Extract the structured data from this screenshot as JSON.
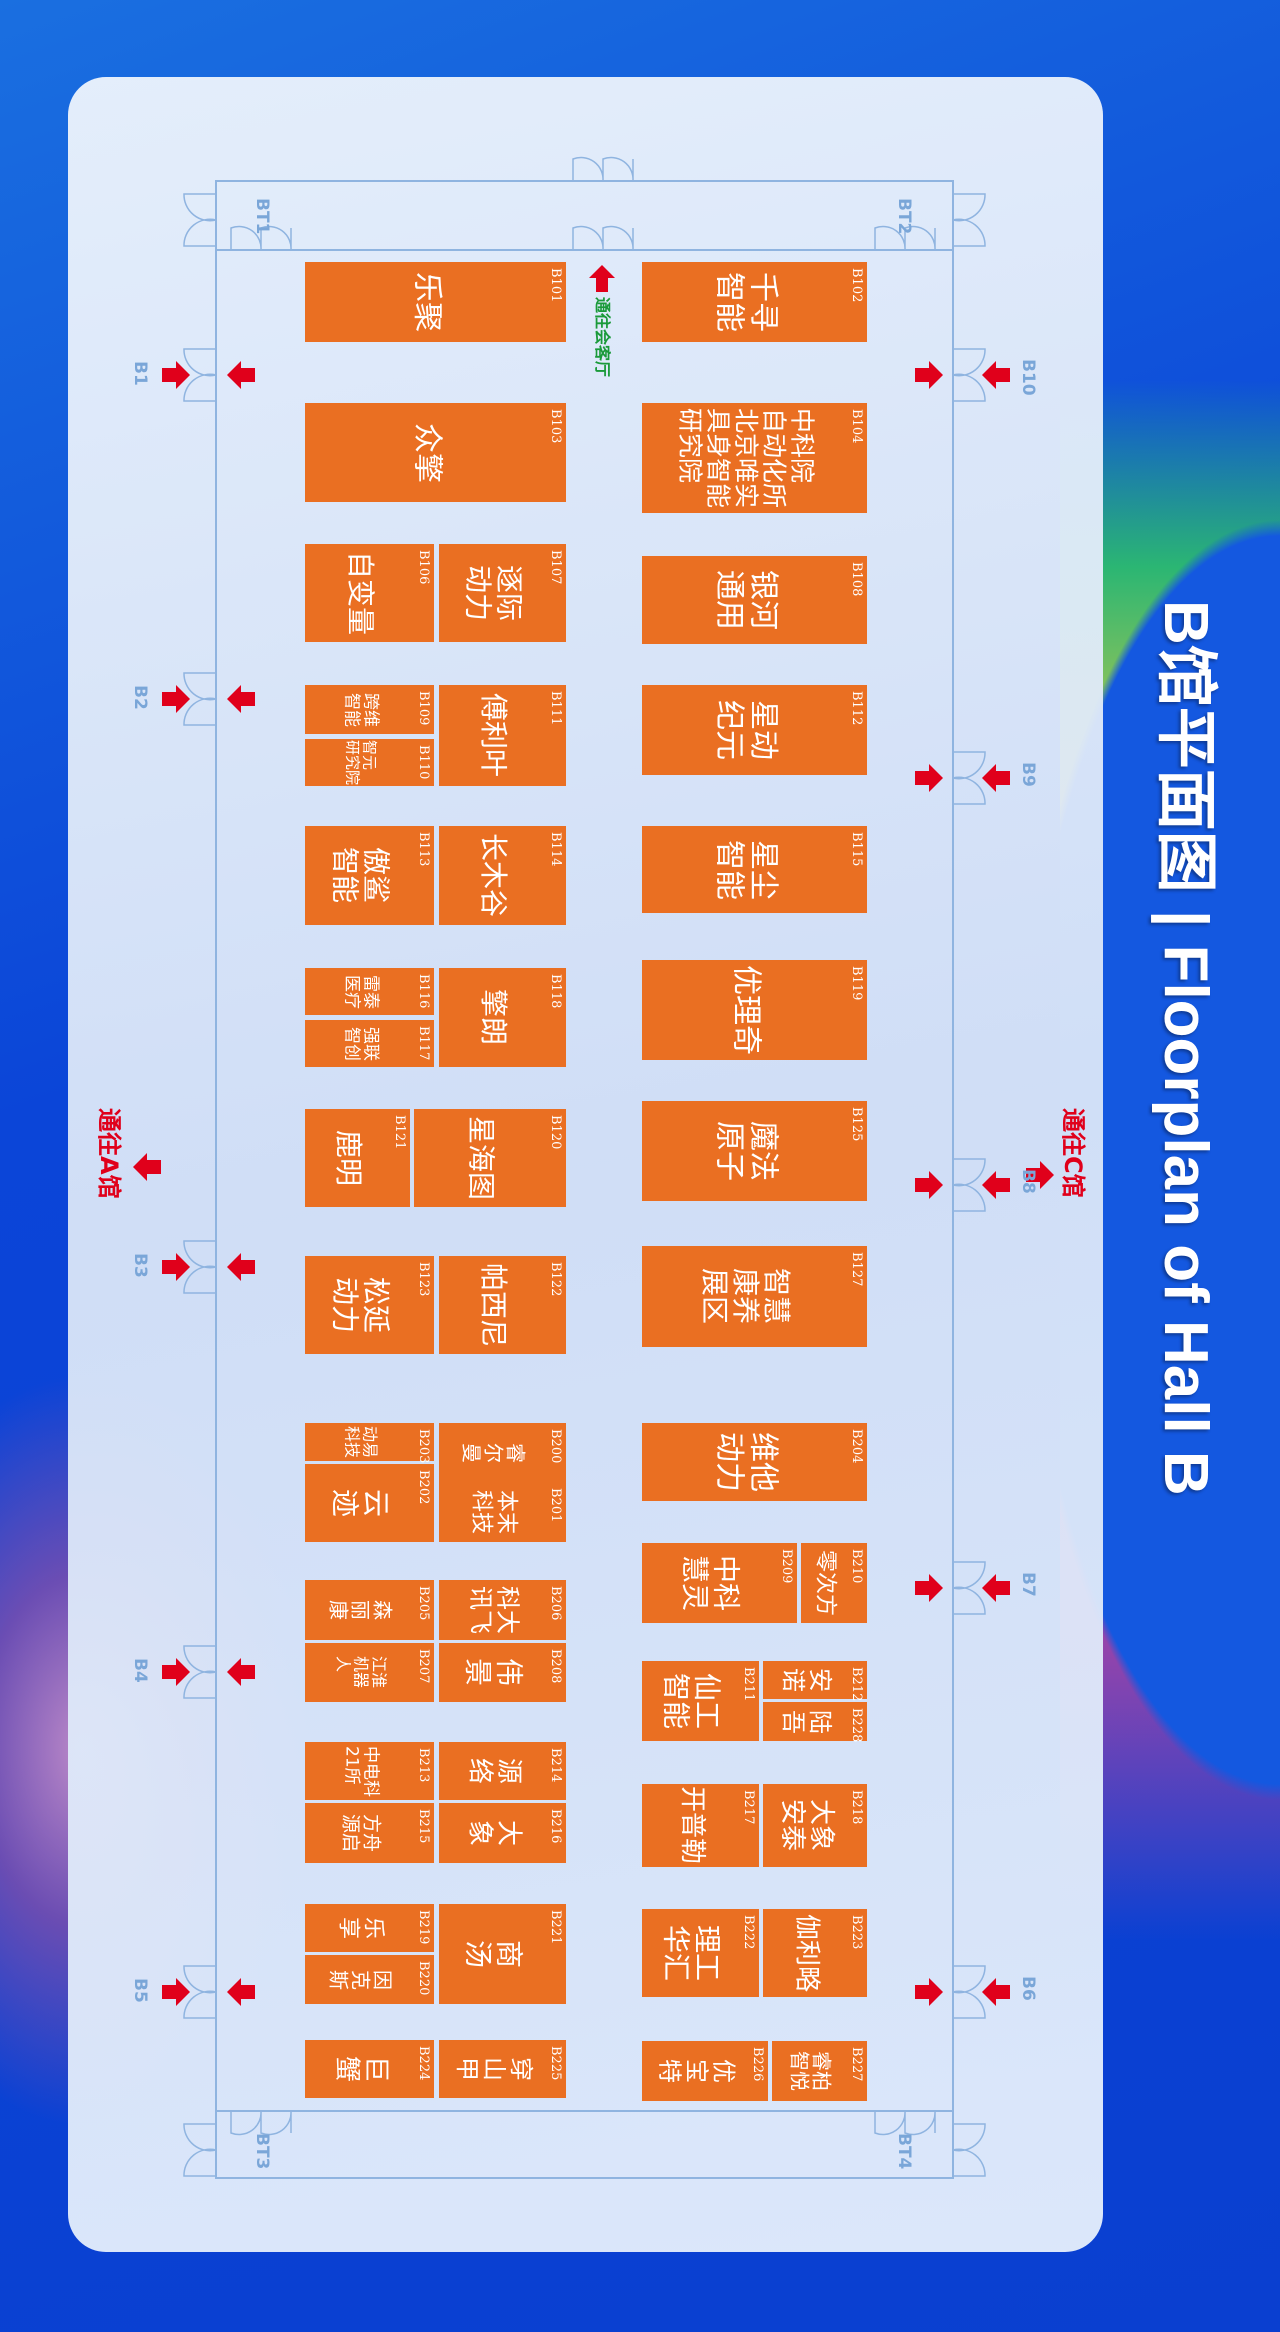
{
  "title": "B馆平面图 | Floorplan of Hall B",
  "colors": {
    "booth": "#ea6f22",
    "arrow": "#e0001b",
    "lounge_text": "#1a9a3a",
    "door": "#7aa6d8"
  },
  "directions": {
    "to_hall_a": "通往A馆",
    "to_hall_c": "通往C馆",
    "to_lounge": "通往会客厅"
  },
  "doors": [
    "B1",
    "B2",
    "B3",
    "B4",
    "B5",
    "B6",
    "B7",
    "B8",
    "B9",
    "B10"
  ],
  "stairs": [
    "BT1",
    "BT2",
    "BT3",
    "BT4"
  ],
  "booths": [
    {
      "id": "B101",
      "name": "乐聚"
    },
    {
      "id": "B102",
      "name": "千寻\n智能"
    },
    {
      "id": "B103",
      "name": "众擎"
    },
    {
      "id": "B104",
      "name": "中科院\n自动化所\n北京唯实\n具身智能\n研究院"
    },
    {
      "id": "B106",
      "name": "自变量"
    },
    {
      "id": "B107",
      "name": "逐际\n动力"
    },
    {
      "id": "B108",
      "name": "银河\n通用"
    },
    {
      "id": "B109",
      "name": "跨维\n智能"
    },
    {
      "id": "B110",
      "name": "智元\n研究院"
    },
    {
      "id": "B111",
      "name": "傅利叶"
    },
    {
      "id": "B112",
      "name": "星动\n纪元"
    },
    {
      "id": "B113",
      "name": "傲鲨\n智能"
    },
    {
      "id": "B114",
      "name": "长木谷"
    },
    {
      "id": "B115",
      "name": "星尘\n智能"
    },
    {
      "id": "B116",
      "name": "雷泰\n医疗"
    },
    {
      "id": "B117",
      "name": "强联\n智创"
    },
    {
      "id": "B118",
      "name": "擎朗"
    },
    {
      "id": "B119",
      "name": "优理奇"
    },
    {
      "id": "B120",
      "name": "星海图"
    },
    {
      "id": "B121",
      "name": "鹿明"
    },
    {
      "id": "B122",
      "name": "帕西尼"
    },
    {
      "id": "B123",
      "name": "松延\n动力"
    },
    {
      "id": "B125",
      "name": "魔法\n原子"
    },
    {
      "id": "B127",
      "name": "智慧\n康养\n展区"
    },
    {
      "id": "B200",
      "name": "睿\n尔\n曼"
    },
    {
      "id": "B201",
      "name": "本末\n科技"
    },
    {
      "id": "B202",
      "name": "云\n迹"
    },
    {
      "id": "B203",
      "name": "动易\n科技"
    },
    {
      "id": "B204",
      "name": "维他\n动力"
    },
    {
      "id": "B205",
      "name": "森\n丽\n康"
    },
    {
      "id": "B206",
      "name": "科大\n讯飞"
    },
    {
      "id": "B207",
      "name": "江淮\n机器\n人"
    },
    {
      "id": "B208",
      "name": "伟\n景"
    },
    {
      "id": "B209",
      "name": "中科\n慧灵"
    },
    {
      "id": "B210",
      "name": "零次方"
    },
    {
      "id": "B211",
      "name": "仙工\n智能"
    },
    {
      "id": "B212",
      "name": "安\n诺"
    },
    {
      "id": "B228",
      "name": "陆\n吾"
    },
    {
      "id": "B213",
      "name": "中电科\n21所"
    },
    {
      "id": "B214",
      "name": "源\n络"
    },
    {
      "id": "B215",
      "name": "方舟\n源启"
    },
    {
      "id": "B216",
      "name": "大\n象"
    },
    {
      "id": "B217",
      "name": "开普勒"
    },
    {
      "id": "B218",
      "name": "大象\n安泰"
    },
    {
      "id": "B219",
      "name": "乐\n享"
    },
    {
      "id": "B220",
      "name": "因\n克\n斯"
    },
    {
      "id": "B221",
      "name": "商\n汤"
    },
    {
      "id": "B222",
      "name": "理工\n华汇"
    },
    {
      "id": "B223",
      "name": "伽利略"
    },
    {
      "id": "B224",
      "name": "巨\n蟹"
    },
    {
      "id": "B225",
      "name": "穿\n山\n甲"
    },
    {
      "id": "B226",
      "name": "优\n宝\n特"
    },
    {
      "id": "B227",
      "name": "睿柏\n智悦"
    }
  ]
}
